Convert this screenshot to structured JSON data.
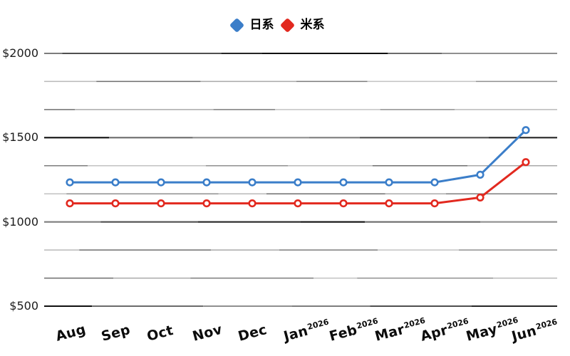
{
  "chart_data": {
    "type": "line",
    "title": "",
    "xlabel": "",
    "ylabel": "",
    "categories": [
      "Aug",
      "Sep",
      "Oct",
      "Nov",
      "Dec",
      "Jan",
      "Feb",
      "Mar",
      "Apr",
      "May",
      "Jun"
    ],
    "category_years": [
      "",
      "",
      "",
      "",
      "",
      "2026",
      "2026",
      "2026",
      "2026",
      "2026",
      "2026"
    ],
    "series": [
      {
        "name": "日系",
        "color": "#3b7ec9",
        "values": [
          1235,
          1235,
          1235,
          1235,
          1235,
          1235,
          1235,
          1235,
          1235,
          1280,
          1545
        ]
      },
      {
        "name": "米系",
        "color": "#e2291f",
        "values": [
          1110,
          1110,
          1110,
          1110,
          1110,
          1110,
          1110,
          1110,
          1110,
          1145,
          1355
        ]
      }
    ],
    "y_ticks": [
      {
        "label": "$2000",
        "value": 2000
      },
      {
        "label": "$1500",
        "value": 1500
      },
      {
        "label": "$1000",
        "value": 1000
      },
      {
        "label": "$500",
        "value": 500
      }
    ],
    "ylim": [
      500,
      2000
    ],
    "minor_gridlines_between_majors": 2,
    "grid": "horizontal",
    "legend_position": "top-center",
    "marker": "open-circle",
    "line_width": 3
  },
  "style": {
    "background": "#ffffff",
    "grid_major_color": "#4a4a4a",
    "grid_minor_color": "#8f8f8f",
    "text_color": "#111111"
  }
}
